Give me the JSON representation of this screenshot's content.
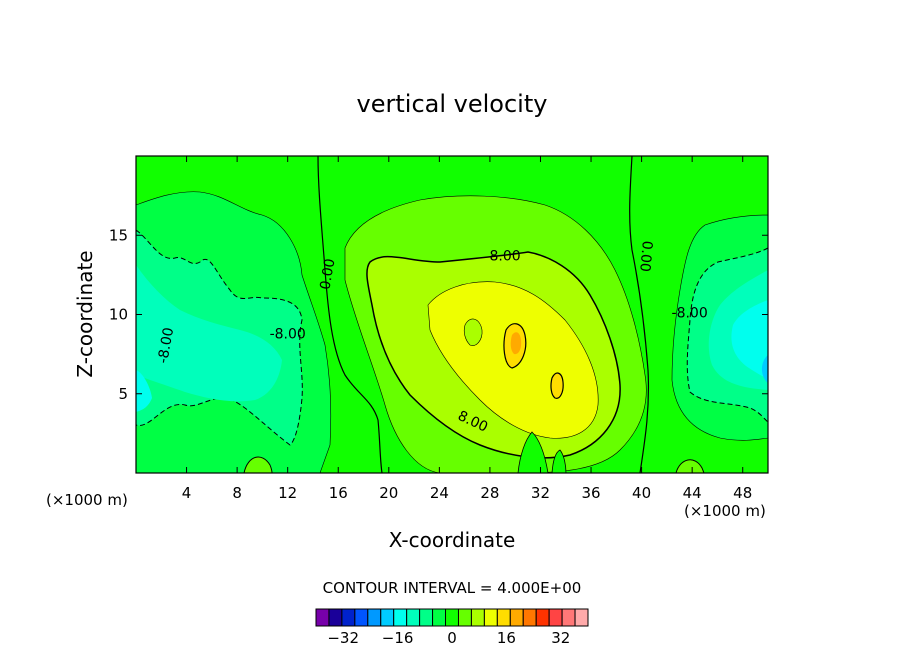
{
  "chart_data": {
    "type": "contour",
    "title": "vertical velocity",
    "xlabel": "X-coordinate",
    "ylabel": "Z-coordinate",
    "x_unit_left": "(×1000 m)",
    "x_unit_right": "(×1000 m)",
    "xlim": [
      0,
      50
    ],
    "ylim": [
      0,
      20
    ],
    "x_ticks": [
      4,
      8,
      12,
      16,
      20,
      24,
      28,
      32,
      36,
      40,
      44,
      48
    ],
    "y_ticks": [
      5,
      10,
      15
    ],
    "contour_interval_text": "CONTOUR INTERVAL = 4.000E+00",
    "contour_interval": 4,
    "contour_labels": [
      {
        "text": "0.00",
        "x": 15.5,
        "y": 12.5
      },
      {
        "text": "0.00",
        "x": 40,
        "y": 13.7
      },
      {
        "text": "8.00",
        "x": 29.2,
        "y": 13.4
      },
      {
        "text": "8.00",
        "x": 26.5,
        "y": 3
      },
      {
        "text": "-8.00",
        "x": 2.7,
        "y": 8
      },
      {
        "text": "-8.00",
        "x": 12,
        "y": 8.5
      },
      {
        "text": "-8.00",
        "x": 43.8,
        "y": 9.8
      }
    ],
    "colorbar": {
      "tick_labels": [
        "−32",
        "−16",
        "0",
        "16",
        "32"
      ],
      "tick_values": [
        -32,
        -16,
        0,
        16,
        32
      ],
      "range": [
        -40,
        40
      ],
      "colors": [
        "#7700aa",
        "#1a0099",
        "#0022cc",
        "#0055ff",
        "#0099ff",
        "#00ccff",
        "#00ffee",
        "#00ffbb",
        "#00ff88",
        "#00ff44",
        "#11ff00",
        "#66ff00",
        "#aaff00",
        "#eeff00",
        "#ffdd00",
        "#ffaa00",
        "#ff7700",
        "#ff3300",
        "#ff4444",
        "#ff7777",
        "#ffaaaa"
      ]
    }
  }
}
